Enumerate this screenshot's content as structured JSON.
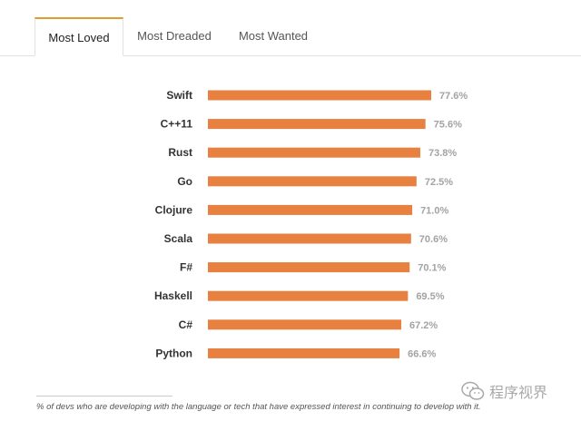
{
  "tabs": [
    {
      "label": "Most Loved",
      "active": true
    },
    {
      "label": "Most Dreaded",
      "active": false
    },
    {
      "label": "Most Wanted",
      "active": false
    }
  ],
  "chart_data": {
    "type": "bar",
    "orientation": "horizontal",
    "categories": [
      "Swift",
      "C++11",
      "Rust",
      "Go",
      "Clojure",
      "Scala",
      "F#",
      "Haskell",
      "C#",
      "Python"
    ],
    "values": [
      77.6,
      75.6,
      73.8,
      72.5,
      71.0,
      70.6,
      70.1,
      69.5,
      67.2,
      66.6
    ],
    "value_labels": [
      "77.6%",
      "75.6%",
      "73.8%",
      "72.5%",
      "71.0%",
      "70.6%",
      "70.1%",
      "69.5%",
      "67.2%",
      "66.6%"
    ],
    "unit": "%",
    "bar_color": "#e8803f",
    "value_label_color": "#a3a3a3",
    "category_label_color": "#333333",
    "grid": false,
    "legend": "none"
  },
  "footnote": "% of devs who are developing with the language or tech that have expressed interest in continuing to develop with it.",
  "watermark": {
    "text": "程序视界",
    "icon": "wechat-icon"
  },
  "colors": {
    "accent": "#e09d2f",
    "tab_border": "#e1e1e1"
  }
}
